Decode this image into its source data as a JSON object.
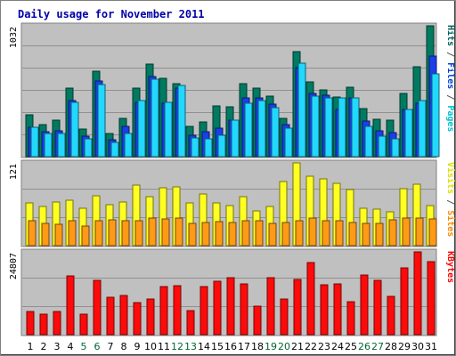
{
  "chart_data": {
    "type": "bar",
    "title": "Daily usage for November 2011",
    "categories": [
      "1",
      "2",
      "3",
      "4",
      "5",
      "6",
      "7",
      "8",
      "9",
      "10",
      "11",
      "12",
      "13",
      "14",
      "15",
      "16",
      "17",
      "18",
      "19",
      "20",
      "21",
      "22",
      "23",
      "24",
      "25",
      "26",
      "27",
      "28",
      "29",
      "30",
      "31"
    ],
    "weekend_days": [
      "5",
      "6",
      "12",
      "13",
      "19",
      "20",
      "26",
      "27"
    ],
    "panels": [
      {
        "name": "hits-files-pages",
        "max_label": "1032",
        "ylim": [
          0,
          1032
        ],
        "right_label": [
          {
            "text": "Pages",
            "color": "#00c0d0"
          },
          {
            "text": " / ",
            "color": "#555555"
          },
          {
            "text": "Files",
            "color": "#0040e0"
          },
          {
            "text": " / ",
            "color": "#555555"
          },
          {
            "text": "Hits",
            "color": "#006060"
          }
        ],
        "series": [
          {
            "name": "Hits",
            "color": "#007a60",
            "values": [
              330,
              255,
              290,
              540,
              220,
              675,
              185,
              300,
              540,
              730,
              620,
              575,
              240,
              275,
              400,
              395,
              575,
              540,
              475,
              300,
              830,
              590,
              530,
              470,
              550,
              380,
              295,
              290,
              500,
              710,
              1032
            ]
          },
          {
            "name": "Files",
            "color": "#1a3ee8",
            "values": [
              230,
              200,
              205,
              440,
              160,
              600,
              135,
              240,
              430,
              630,
              420,
              540,
              170,
              195,
              225,
              290,
              460,
              465,
              415,
              250,
              700,
              500,
              485,
              375,
              465,
              280,
              205,
              190,
              375,
              420,
              790
            ]
          },
          {
            "name": "Pages",
            "color": "#22d8ff",
            "values": [
              230,
              180,
              185,
              430,
              140,
              570,
              110,
              180,
              440,
              610,
              430,
              560,
              150,
              140,
              170,
              290,
              420,
              445,
              385,
              225,
              735,
              475,
              460,
              465,
              465,
              240,
              160,
              140,
              370,
              440,
              655
            ]
          }
        ]
      },
      {
        "name": "visits-sites",
        "max_label": "121",
        "ylim": [
          0,
          121
        ],
        "right_label": [
          {
            "text": "Sites",
            "color": "#ff8800"
          },
          {
            "text": " / ",
            "color": "#555555"
          },
          {
            "text": "Visits",
            "color": "#e0e000"
          }
        ],
        "series": [
          {
            "name": "Visits",
            "color": "#ffff22",
            "values": [
              62,
              57,
              64,
              67,
              55,
              73,
              60,
              64,
              88,
              72,
              84,
              86,
              62,
              75,
              63,
              59,
              72,
              51,
              57,
              94,
              121,
              101,
              98,
              91,
              82,
              54,
              53,
              50,
              83,
              90,
              58
            ]
          },
          {
            "name": "Sites",
            "color": "#ff9a16",
            "values": [
              37,
              33,
              31,
              36,
              29,
              36,
              38,
              37,
              36,
              40,
              39,
              40,
              33,
              34,
              35,
              34,
              36,
              37,
              32,
              34,
              37,
              40,
              37,
              36,
              34,
              32,
              33,
              38,
              40,
              40,
              39
            ]
          }
        ]
      },
      {
        "name": "kbytes",
        "max_label": "24807",
        "ylim": [
          0,
          24807
        ],
        "right_label": [
          {
            "text": "KBytes",
            "color": "#ff0000"
          }
        ],
        "series": [
          {
            "name": "KBytes",
            "color": "#ff0a0a",
            "values": [
              6900,
              6200,
              6900,
              17600,
              6200,
              16300,
              11100,
              11800,
              9500,
              10700,
              14300,
              14600,
              7300,
              14300,
              16100,
              17200,
              15300,
              8500,
              17000,
              10600,
              16600,
              21700,
              14900,
              15300,
              9900,
              17800,
              16400,
              11600,
              20100,
              24807,
              21900
            ]
          }
        ]
      }
    ]
  },
  "colors": {
    "title": "#0000a8",
    "plot_bg": "#c0c0c0",
    "weekday_label": "#000000",
    "weekend_label": "#006633"
  }
}
